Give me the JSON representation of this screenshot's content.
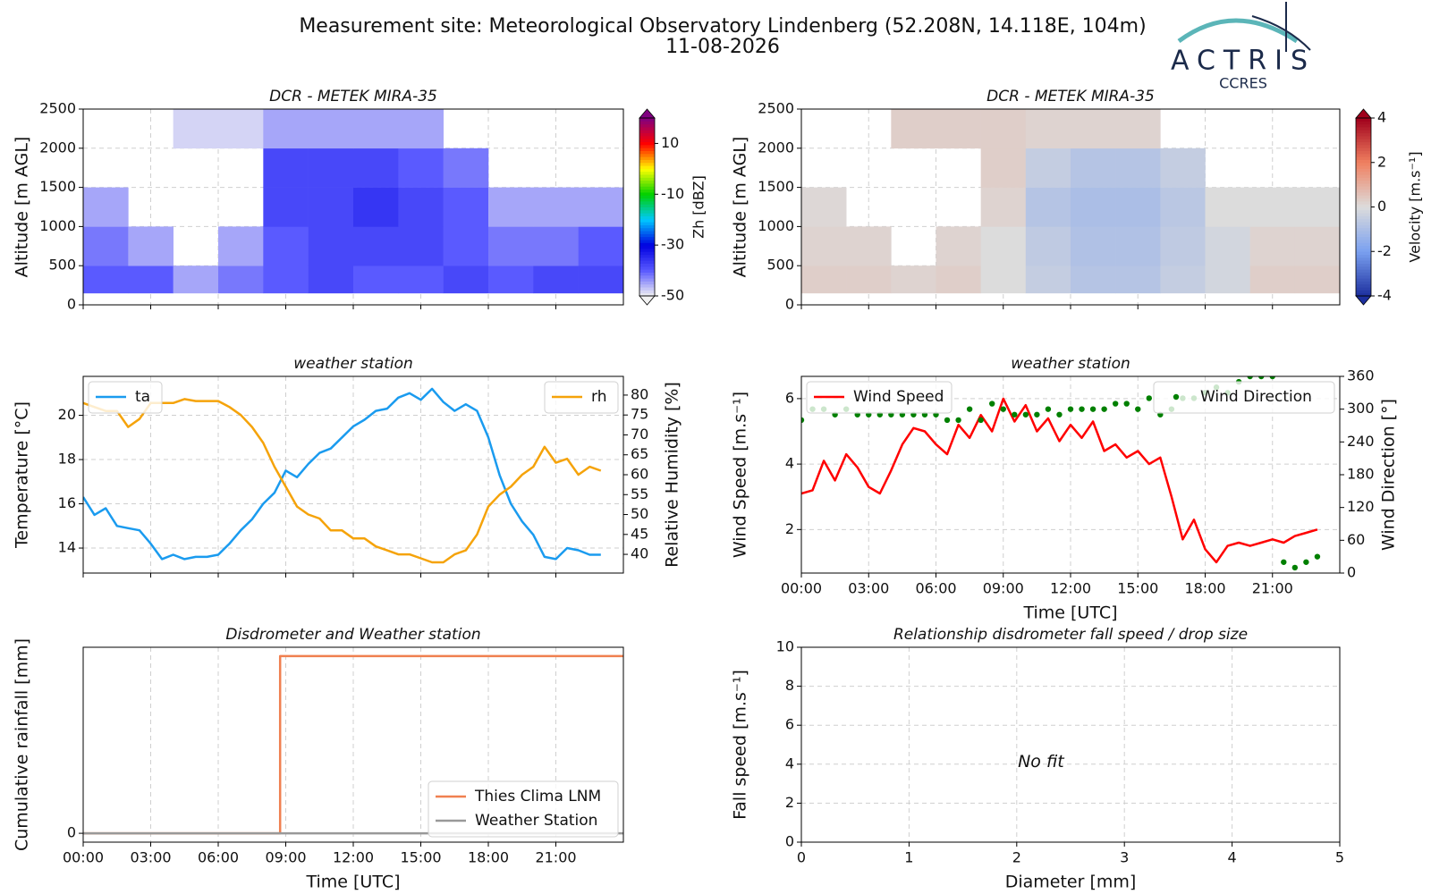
{
  "header": {
    "title": "Measurement site: Meteorological Observatory Lindenberg (52.208N, 14.118E, 104m)",
    "date": "11-08-2026",
    "logo": "ACTRIS",
    "logo_subtitle": "CCRES"
  },
  "chart_data": [
    {
      "type": "heatmap",
      "title": "DCR - METEK MIRA-35",
      "ylabel": "Altitude [m AGL]",
      "x_edges": [
        0,
        2,
        4,
        6,
        8,
        10,
        12,
        14,
        16,
        18,
        20,
        22,
        24
      ],
      "y_edges": [
        150,
        500,
        1000,
        1500,
        2000,
        2500
      ],
      "z": [
        [
          -40,
          -40,
          -45,
          -42,
          -40,
          -38,
          -40,
          -40,
          -38,
          -40,
          -38,
          -38
        ],
        [
          -42,
          -45,
          null,
          -45,
          -40,
          -38,
          -38,
          -38,
          -40,
          -42,
          -42,
          -40
        ],
        [
          -45,
          null,
          null,
          null,
          -38,
          -38,
          -36,
          -38,
          -40,
          -45,
          -45,
          -45
        ],
        [
          null,
          null,
          null,
          null,
          -38,
          -38,
          -38,
          -40,
          -42,
          null,
          null,
          null
        ],
        [
          null,
          null,
          -48,
          -48,
          -45,
          -45,
          -45,
          -45,
          null,
          null,
          null,
          null
        ]
      ],
      "xlim": [
        0,
        24
      ],
      "xticks": [
        0,
        3,
        6,
        9,
        12,
        15,
        18,
        21
      ],
      "show_xticklabels": false,
      "ylim": [
        0,
        2500
      ],
      "yticks": [
        0,
        500,
        1000,
        1500,
        2000,
        2500
      ],
      "grid": true,
      "colorbar": {
        "label": "Zh [dBZ]",
        "lim": [
          -50,
          20
        ],
        "ticks": [
          -50,
          -30,
          -10,
          10
        ],
        "colormap": [
          "#f2f2f2",
          "#5a5aff",
          "#0000e0",
          "#00c8ff",
          "#00d000",
          "#ffff00",
          "#ff0000",
          "#800080"
        ]
      }
    },
    {
      "type": "heatmap",
      "title": "DCR - METEK MIRA-35",
      "ylabel": "Altitude [m AGL]",
      "x_edges": [
        0,
        2,
        4,
        6,
        8,
        10,
        12,
        14,
        16,
        18,
        20,
        22,
        24
      ],
      "y_edges": [
        150,
        500,
        1000,
        1500,
        2000,
        2500
      ],
      "z": [
        [
          0.3,
          0.3,
          0.2,
          0.3,
          0,
          -0.5,
          -0.8,
          -0.8,
          -0.5,
          -0.2,
          0.3,
          0.3
        ],
        [
          0.2,
          0.2,
          null,
          0.2,
          0,
          -0.6,
          -0.9,
          -0.9,
          -0.6,
          -0.2,
          0.2,
          0.2
        ],
        [
          0.1,
          null,
          null,
          null,
          0.2,
          -0.8,
          -1.0,
          -1.0,
          -0.7,
          0,
          0,
          0
        ],
        [
          null,
          null,
          null,
          null,
          0.3,
          -0.5,
          -0.8,
          -0.8,
          -0.5,
          null,
          null,
          null
        ],
        [
          null,
          null,
          0.3,
          0.3,
          0.3,
          0.2,
          0.2,
          0.2,
          null,
          null,
          null,
          null
        ]
      ],
      "xlim": [
        0,
        24
      ],
      "xticks": [
        0,
        3,
        6,
        9,
        12,
        15,
        18,
        21
      ],
      "show_xticklabels": false,
      "ylim": [
        0,
        2500
      ],
      "yticks": [
        0,
        500,
        1000,
        1500,
        2000,
        2500
      ],
      "grid": true,
      "colorbar": {
        "label": "Velocity [m.s⁻¹]",
        "lim": [
          -4,
          4
        ],
        "ticks": [
          -4,
          -2,
          0,
          2,
          4
        ],
        "colormap": [
          "#1c2f9e",
          "#7aa0f0",
          "#dcdcdc",
          "#f08060",
          "#a0001c"
        ]
      }
    },
    {
      "type": "line",
      "title": "weather station",
      "ylabel": "Temperature [°C]",
      "y2label": "Relative Humidity [%]",
      "x": [
        0,
        0.5,
        1,
        1.5,
        2,
        2.5,
        3,
        3.5,
        4,
        4.5,
        5,
        5.5,
        6,
        6.5,
        7,
        7.5,
        8,
        8.5,
        9,
        9.5,
        10,
        10.5,
        11,
        11.5,
        12,
        12.5,
        13,
        13.5,
        14,
        14.5,
        15,
        15.5,
        16,
        16.5,
        17,
        17.5,
        18,
        18.5,
        19,
        19.5,
        20,
        20.5,
        21,
        21.5,
        22,
        22.5,
        23
      ],
      "series": [
        {
          "name": "ta",
          "color": "#1a9bef",
          "values": [
            16.3,
            15.5,
            15.8,
            15.0,
            14.9,
            14.8,
            14.2,
            13.5,
            13.7,
            13.5,
            13.6,
            13.6,
            13.7,
            14.2,
            14.8,
            15.3,
            16.0,
            16.5,
            17.5,
            17.2,
            17.8,
            18.3,
            18.5,
            19.0,
            19.5,
            19.8,
            20.2,
            20.3,
            20.8,
            21.0,
            20.7,
            21.2,
            20.6,
            20.2,
            20.5,
            20.2,
            19.0,
            17.3,
            16.0,
            15.2,
            14.6,
            13.6,
            13.5,
            14.0,
            13.9,
            13.7,
            13.7
          ]
        },
        {
          "name": "rh",
          "color": "#f5a30a",
          "axis": "y2",
          "values": [
            78,
            77,
            76,
            76,
            72,
            74,
            78,
            78,
            78,
            79,
            78.5,
            78.5,
            78.5,
            77,
            75,
            72,
            68,
            62,
            57,
            52,
            50,
            49,
            46,
            46,
            44,
            44,
            42,
            41,
            40,
            40,
            39,
            38,
            38,
            40,
            41,
            45,
            52,
            55,
            57,
            60,
            62,
            67,
            63,
            64,
            60,
            62,
            61
          ]
        }
      ],
      "xlim": [
        0,
        24
      ],
      "xticks": [
        0,
        3,
        6,
        9,
        12,
        15,
        18,
        21
      ],
      "show_xticklabels": false,
      "ylim": [
        12.87,
        21.76
      ],
      "yticks": [
        14,
        16,
        18,
        20
      ],
      "y2lim": [
        35.3,
        84.7
      ],
      "y2ticks": [
        40,
        45,
        50,
        55,
        60,
        65,
        70,
        75,
        80
      ],
      "grid": true,
      "legend": "upper left",
      "y2_legend": "upper right"
    },
    {
      "type": "line",
      "title": "weather station",
      "xlabel": "Time [UTC]",
      "ylabel": "Wind Speed [m.s⁻¹]",
      "y2label": "Wind Direction [°]",
      "x": [
        0,
        0.5,
        1,
        1.5,
        2,
        2.5,
        3,
        3.5,
        4,
        4.5,
        5,
        5.5,
        6,
        6.5,
        7,
        7.5,
        8,
        8.5,
        9,
        9.5,
        10,
        10.5,
        11,
        11.5,
        12,
        12.5,
        13,
        13.5,
        14,
        14.5,
        15,
        15.5,
        16,
        16.5,
        17,
        17.5,
        18,
        18.5,
        19,
        19.5,
        20,
        20.5,
        21,
        21.5,
        22,
        22.5,
        23
      ],
      "series": [
        {
          "name": "Wind Speed",
          "color": "#ff0000",
          "values": [
            3.1,
            3.2,
            4.1,
            3.5,
            4.3,
            3.9,
            3.3,
            3.1,
            3.8,
            4.6,
            5.1,
            5.0,
            4.6,
            4.3,
            5.2,
            4.8,
            5.5,
            5.0,
            6.0,
            5.3,
            5.8,
            5.0,
            5.4,
            4.7,
            5.2,
            4.8,
            5.3,
            4.4,
            4.6,
            4.2,
            4.4,
            4.0,
            4.2,
            3.0,
            1.7,
            2.3,
            1.4,
            1.0,
            1.5,
            1.6,
            1.5,
            1.6,
            1.7,
            1.6,
            1.8,
            1.9,
            2.0
          ]
        },
        {
          "name": "Wind Direction",
          "color": "#008000",
          "axis": "y2",
          "mode": "markers",
          "values": [
            280,
            300,
            300,
            290,
            300,
            290,
            290,
            290,
            290,
            290,
            290,
            290,
            290,
            280,
            280,
            300,
            280,
            310,
            300,
            290,
            290,
            290,
            300,
            290,
            300,
            300,
            300,
            300,
            310,
            310,
            300,
            320,
            290,
            300,
            320,
            320,
            330,
            340,
            330,
            350,
            360,
            360,
            360,
            20,
            10,
            20,
            30
          ]
        }
      ],
      "xlim": [
        0,
        24
      ],
      "xticks": [
        {
          "value": 0,
          "label": "00:00"
        },
        {
          "value": 3,
          "label": "03:00"
        },
        {
          "value": 6,
          "label": "06:00"
        },
        {
          "value": 9,
          "label": "09:00"
        },
        {
          "value": 12,
          "label": "12:00"
        },
        {
          "value": 15,
          "label": "15:00"
        },
        {
          "value": 18,
          "label": "18:00"
        },
        {
          "value": 21,
          "label": "21:00"
        }
      ],
      "ylim": [
        0.67,
        6.68
      ],
      "yticks": [
        2,
        4,
        6
      ],
      "y2lim": [
        0,
        360
      ],
      "y2ticks": [
        0,
        60,
        120,
        180,
        240,
        300,
        360
      ],
      "grid": true,
      "legend": "upper left",
      "y2_legend": "upper right"
    },
    {
      "type": "line",
      "title": "Disdrometer and Weather station",
      "xlabel": "Time [UTC]",
      "ylabel": "Cumulative rainfall [mm]",
      "series": [
        {
          "name": "Thies Clima LNM",
          "color": "#f08050",
          "x": [
            0,
            8.75,
            8.75,
            24
          ],
          "values": [
            0,
            0,
            1,
            1
          ]
        },
        {
          "name": "Weather Station",
          "color": "#999999",
          "x": [
            0,
            24
          ],
          "values": [
            0,
            0
          ]
        }
      ],
      "xlim": [
        0,
        24
      ],
      "xticks": [
        {
          "value": 0,
          "label": "00:00"
        },
        {
          "value": 3,
          "label": "03:00"
        },
        {
          "value": 6,
          "label": "06:00"
        },
        {
          "value": 9,
          "label": "09:00"
        },
        {
          "value": 12,
          "label": "12:00"
        },
        {
          "value": 15,
          "label": "15:00"
        },
        {
          "value": 18,
          "label": "18:00"
        },
        {
          "value": 21,
          "label": "21:00"
        }
      ],
      "ylim": [
        -0.05,
        1.05
      ],
      "yticks": [
        0
      ],
      "grid": true,
      "legend": "lower right"
    },
    {
      "type": "scatter",
      "title": "Relationship disdrometer fall speed / drop size",
      "xlabel": "Diameter [mm]",
      "ylabel": "Fall speed [m.s⁻¹]",
      "x": [],
      "values": [],
      "xlim": [
        0,
        5
      ],
      "xticks": [
        0,
        1,
        2,
        3,
        4,
        5
      ],
      "ylim": [
        0,
        10
      ],
      "yticks": [
        0,
        2,
        4,
        6,
        8,
        10
      ],
      "grid": true,
      "annotation": "No fit"
    }
  ]
}
